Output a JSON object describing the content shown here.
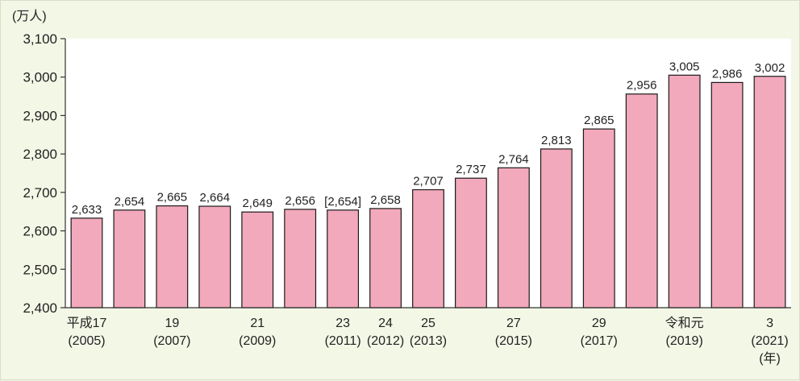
{
  "chart_data": {
    "type": "bar",
    "unit": "(万人)",
    "year_unit": "(年)",
    "categories": [
      "2005",
      "2006",
      "2007",
      "2008",
      "2009",
      "2010",
      "2011",
      "2012",
      "2013",
      "2014",
      "2015",
      "2016",
      "2017",
      "2018",
      "2019",
      "2020",
      "2021"
    ],
    "values": [
      2633,
      2654,
      2665,
      2664,
      2649,
      2656,
      2654,
      2658,
      2707,
      2737,
      2764,
      2813,
      2865,
      2956,
      3005,
      2986,
      3002
    ],
    "value_labels": [
      "2,633",
      "2,654",
      "2,665",
      "2,664",
      "2,649",
      "2,656",
      "[2,654]",
      "2,658",
      "2,707",
      "2,737",
      "2,764",
      "2,813",
      "2,865",
      "2,956",
      "3,005",
      "2,986",
      "3,002"
    ],
    "x_labels": [
      {
        "top": "平成17",
        "bottom": "(2005)"
      },
      {
        "top": "",
        "bottom": ""
      },
      {
        "top": "19",
        "bottom": "(2007)"
      },
      {
        "top": "",
        "bottom": ""
      },
      {
        "top": "21",
        "bottom": "(2009)"
      },
      {
        "top": "",
        "bottom": ""
      },
      {
        "top": "23",
        "bottom": "(2011)"
      },
      {
        "top": "24",
        "bottom": "(2012)"
      },
      {
        "top": "25",
        "bottom": "(2013)"
      },
      {
        "top": "",
        "bottom": ""
      },
      {
        "top": "27",
        "bottom": "(2015)"
      },
      {
        "top": "",
        "bottom": ""
      },
      {
        "top": "29",
        "bottom": "(2017)"
      },
      {
        "top": "",
        "bottom": ""
      },
      {
        "top": "令和元",
        "bottom": "(2019)"
      },
      {
        "top": "",
        "bottom": ""
      },
      {
        "top": "3",
        "bottom": "(2021)"
      }
    ],
    "y_ticks": [
      "2,400",
      "2,500",
      "2,600",
      "2,700",
      "2,800",
      "2,900",
      "3,000",
      "3,100"
    ],
    "ylim": [
      2400,
      3100
    ],
    "colors": {
      "bar": "#f2a9bb",
      "background": "#f3f7e6",
      "plot_background": "#ffffff"
    }
  }
}
